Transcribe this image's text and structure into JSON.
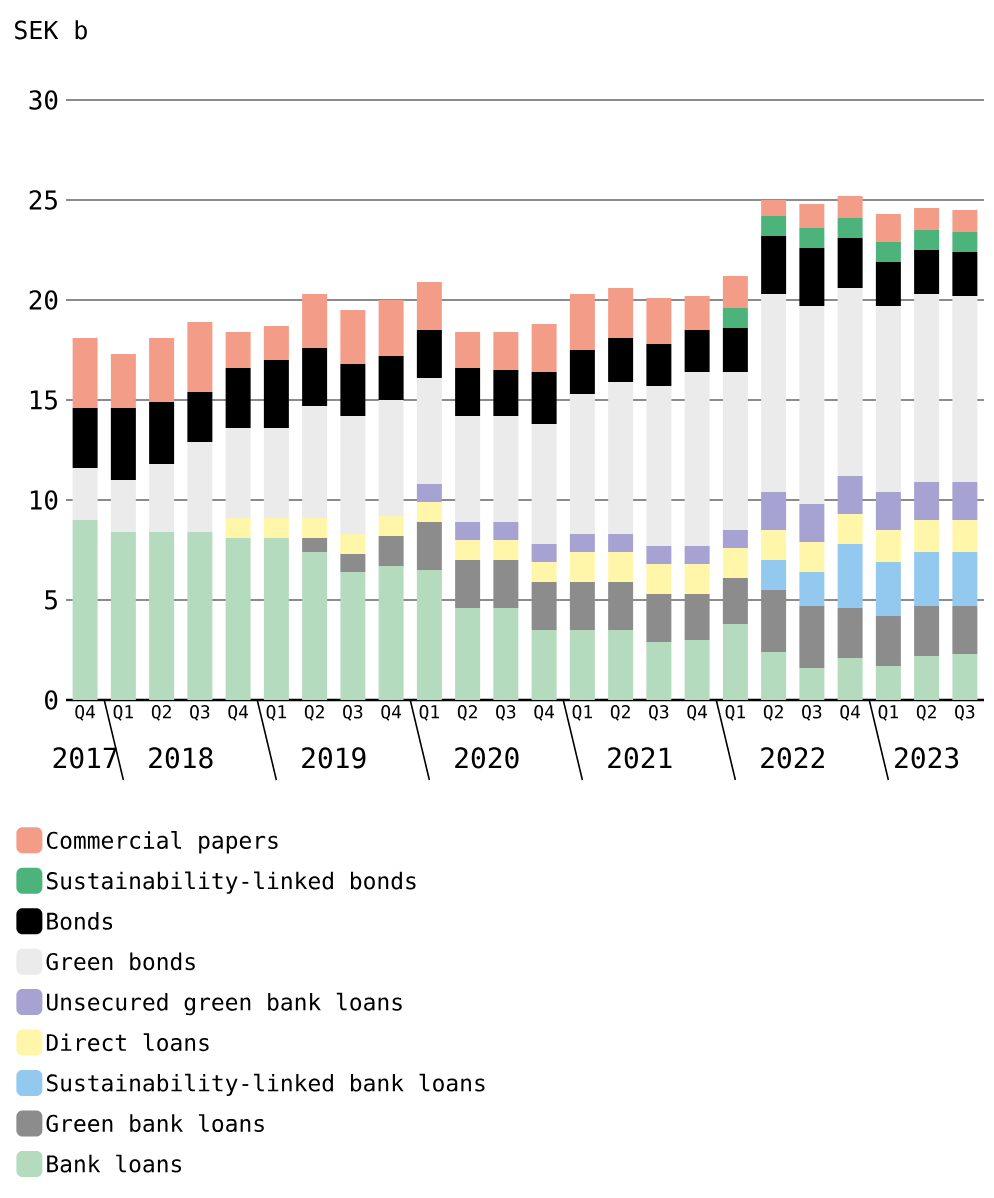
{
  "chart_data": {
    "type": "bar",
    "stacked": true,
    "ylabel": "SEK b",
    "categories": [
      "Q4",
      "Q1",
      "Q2",
      "Q3",
      "Q4",
      "Q1",
      "Q2",
      "Q3",
      "Q4",
      "Q1",
      "Q2",
      "Q3",
      "Q4",
      "Q1",
      "Q2",
      "Q3",
      "Q4",
      "Q1",
      "Q2",
      "Q3",
      "Q4",
      "Q1",
      "Q2",
      "Q3"
    ],
    "annotations": [
      "2017",
      "2018",
      "2019",
      "2020",
      "2021",
      "2022",
      "2023"
    ],
    "ylim": [
      0,
      30
    ],
    "yticks": [
      0,
      5,
      10,
      15,
      20,
      25,
      30
    ],
    "grid": "y",
    "legend": "bottom",
    "series": [
      {
        "name": "Bank loans",
        "color": "#b5dbbf",
        "values": [
          9.0,
          8.4,
          8.4,
          8.4,
          8.1,
          8.1,
          7.4,
          6.4,
          6.7,
          6.5,
          4.6,
          4.6,
          3.5,
          3.5,
          3.5,
          2.9,
          3.0,
          3.8,
          2.4,
          1.6,
          2.1,
          1.7,
          2.2,
          2.3
        ]
      },
      {
        "name": "Green bank loans",
        "color": "#8c8c8c",
        "values": [
          null,
          null,
          null,
          null,
          null,
          null,
          0.7,
          0.9,
          1.5,
          2.4,
          2.4,
          2.4,
          2.4,
          2.4,
          2.4,
          2.4,
          2.3,
          2.3,
          3.1,
          3.1,
          2.5,
          2.5,
          2.5,
          2.4
        ]
      },
      {
        "name": "Sustainability-linked bank loans",
        "color": "#93c9ee",
        "values": [
          null,
          null,
          null,
          null,
          null,
          null,
          null,
          null,
          null,
          null,
          null,
          null,
          null,
          null,
          null,
          null,
          null,
          null,
          1.5,
          1.7,
          3.2,
          2.7,
          2.7,
          2.7
        ]
      },
      {
        "name": "Direct loans",
        "color": "#fff6aa",
        "values": [
          null,
          null,
          null,
          null,
          1.0,
          1.0,
          1.0,
          1.0,
          1.0,
          1.0,
          1.0,
          1.0,
          1.0,
          1.5,
          1.5,
          1.5,
          1.5,
          1.5,
          1.5,
          1.5,
          1.5,
          1.6,
          1.6,
          1.6
        ]
      },
      {
        "name": "Unsecured green bank loans",
        "color": "#a6a3d3",
        "values": [
          null,
          null,
          null,
          null,
          null,
          null,
          null,
          null,
          null,
          0.9,
          0.9,
          0.9,
          0.9,
          0.9,
          0.9,
          0.9,
          0.9,
          0.9,
          1.9,
          1.9,
          1.9,
          1.9,
          1.9,
          1.9
        ]
      },
      {
        "name": "Green bonds",
        "color": "#ebebeb",
        "values": [
          2.6,
          2.6,
          3.4,
          4.5,
          4.5,
          4.5,
          5.6,
          5.9,
          5.8,
          5.3,
          5.3,
          5.3,
          6.0,
          7.0,
          7.6,
          8.0,
          8.7,
          7.9,
          9.9,
          9.9,
          9.4,
          9.3,
          9.4,
          9.3
        ]
      },
      {
        "name": "Bonds",
        "color": "#000000",
        "values": [
          3.0,
          3.6,
          3.1,
          2.5,
          3.0,
          3.4,
          2.9,
          2.6,
          2.2,
          2.4,
          2.4,
          2.3,
          2.6,
          2.2,
          2.2,
          2.1,
          2.1,
          2.2,
          2.9,
          2.9,
          2.5,
          2.2,
          2.2,
          2.2
        ]
      },
      {
        "name": "Sustainability-linked bonds",
        "color": "#4cb47a",
        "values": [
          null,
          null,
          null,
          null,
          null,
          null,
          null,
          null,
          null,
          null,
          null,
          null,
          null,
          null,
          null,
          null,
          null,
          1.0,
          1.0,
          1.0,
          1.0,
          1.0,
          1.0,
          1.0
        ]
      },
      {
        "name": "Commercial papers",
        "color": "#f39c87",
        "values": [
          3.5,
          2.7,
          3.2,
          3.5,
          1.8,
          1.7,
          2.7,
          2.7,
          2.8,
          2.4,
          1.8,
          1.9,
          2.4,
          2.8,
          2.5,
          2.3,
          1.7,
          1.6,
          0.8,
          1.2,
          1.1,
          1.4,
          1.1,
          1.1
        ]
      }
    ]
  }
}
